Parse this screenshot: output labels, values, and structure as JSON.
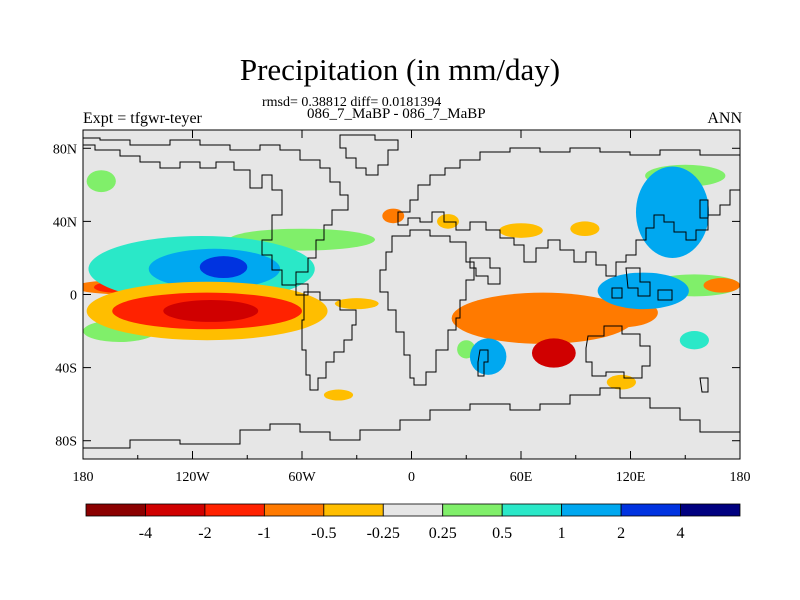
{
  "figure": {
    "title": "Precipitation (in mm/day)",
    "stats_line": "rmsd= 0.38812 diff= 0.0181394",
    "cases_line": "086_7_MaBP - 086_7_MaBP",
    "experiment_label": "Expt = tfgwr-teyer",
    "season_label": "ANN"
  },
  "chart_data": {
    "type": "heatmap",
    "title": "Precipitation (in mm/day)",
    "subtitle": "086_7_MaBP - 086_7_MaBP",
    "xlabel": "",
    "ylabel": "",
    "xlim": [
      -180,
      180
    ],
    "ylim": [
      -90,
      90
    ],
    "x_ticks": [
      {
        "value": -180,
        "label": "180"
      },
      {
        "value": -120,
        "label": "120W"
      },
      {
        "value": -60,
        "label": "60W"
      },
      {
        "value": 0,
        "label": "0"
      },
      {
        "value": 60,
        "label": "60E"
      },
      {
        "value": 120,
        "label": "120E"
      },
      {
        "value": 180,
        "label": "180"
      }
    ],
    "y_ticks": [
      {
        "value": 80,
        "label": "80N"
      },
      {
        "value": 40,
        "label": "40N"
      },
      {
        "value": 0,
        "label": "0"
      },
      {
        "value": -40,
        "label": "40S"
      },
      {
        "value": -80,
        "label": "80S"
      }
    ],
    "colorbar": {
      "levels": [
        "-4",
        "-2",
        "-1",
        "-0.5",
        "-0.25",
        "0.25",
        "0.5",
        "1",
        "2",
        "4"
      ],
      "colors": [
        "#8b0000",
        "#d00000",
        "#ff2200",
        "#ff7a00",
        "#ffbe00",
        "#e6e6e6",
        "#80ef6a",
        "#2ae8c8",
        "#00a8f0",
        "#0033e0",
        "#000080"
      ]
    },
    "regions": [
      {
        "name": "ne-pacific-storm-track",
        "lat": 14,
        "lon": -115,
        "value": 0.5
      },
      {
        "name": "ne-pacific-cyan",
        "lat": 14,
        "lon": -108,
        "value": 1.5
      },
      {
        "name": "ne-pacific-blue",
        "lat": 15,
        "lon": -103,
        "value": 2.5
      },
      {
        "name": "pacific-itcz-south-deficit",
        "lat": -9,
        "lon": -112,
        "value": -0.4
      },
      {
        "name": "pacific-deficit-core",
        "lat": -9,
        "lon": -112,
        "value": -1.5
      },
      {
        "name": "pacific-deficit-peak",
        "lat": -9,
        "lon": -110,
        "value": -2.5
      },
      {
        "name": "indian-ocean-deficit",
        "lat": -13,
        "lon": 72,
        "value": -0.6
      },
      {
        "name": "madagascar-deficit",
        "lat": -32,
        "lon": 78,
        "value": -2.5
      },
      {
        "name": "west-pacific-wet",
        "lat": 2,
        "lon": 127,
        "value": 1.5
      },
      {
        "name": "nw-pacific-wet",
        "lat": 45,
        "lon": 143,
        "value": 1.5
      },
      {
        "name": "s-atlantic-wet",
        "lat": -34,
        "lon": 42,
        "value": 1.0
      }
    ]
  }
}
